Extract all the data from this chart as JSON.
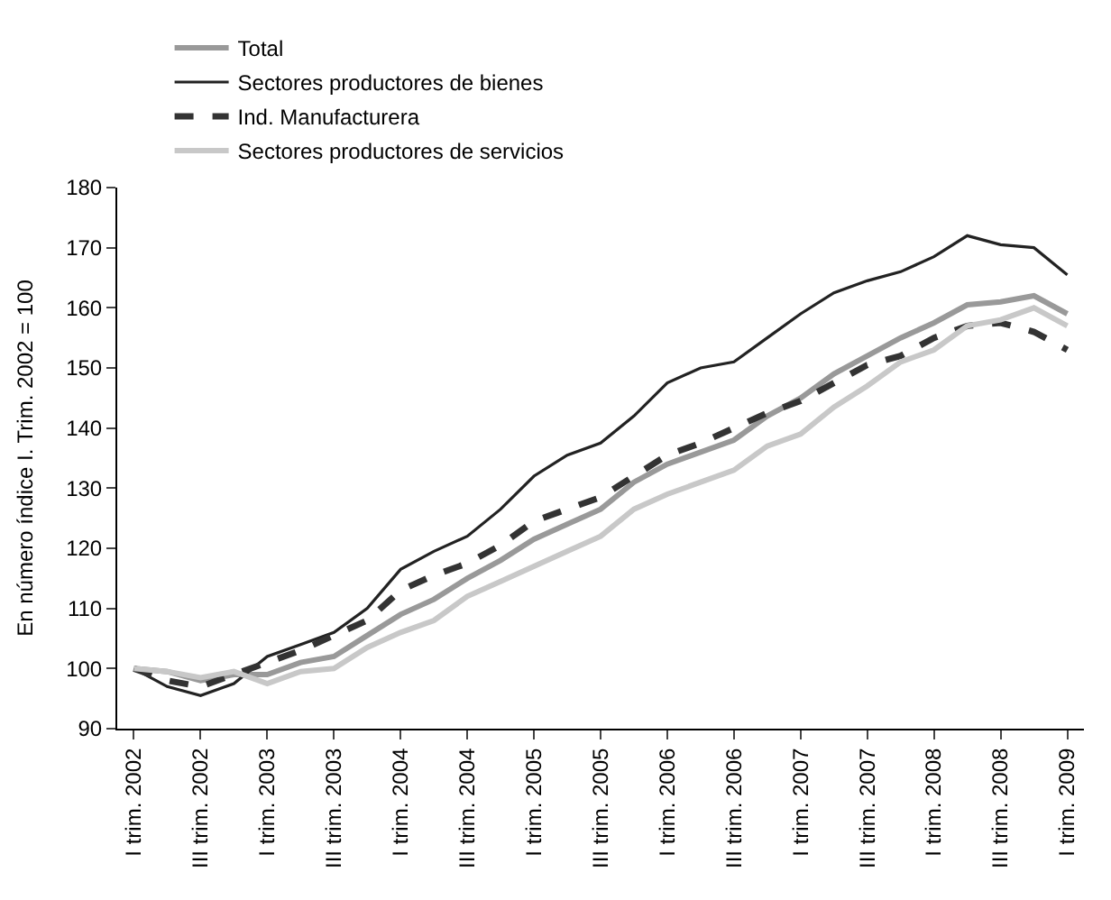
{
  "chart_data": {
    "type": "line",
    "ylabel": "En número índice I. Trim. 2002 = 100",
    "categories": [
      "I trim. 2002",
      null,
      "III trim. 2002",
      null,
      "I trim. 2003",
      null,
      "III trim. 2003",
      null,
      "I trim. 2004",
      null,
      "III trim. 2004",
      null,
      "I trim. 2005",
      null,
      "III trim. 2005",
      null,
      "I trim. 2006",
      null,
      "III trim. 2006",
      null,
      "I trim. 2007",
      null,
      "III trim. 2007",
      null,
      "I trim. 2008",
      null,
      "III trim. 2008",
      null,
      "I trim. 2009"
    ],
    "ylim": [
      90,
      180
    ],
    "yticks": [
      90,
      100,
      110,
      120,
      130,
      140,
      150,
      160,
      170,
      180
    ],
    "grid": false,
    "legend": "top",
    "marker": "none",
    "series": [
      {
        "name": "Total",
        "color": "#999999",
        "line_style": "solid",
        "values": [
          100,
          99.5,
          98,
          99,
          99,
          101,
          102,
          105.5,
          109,
          111.5,
          115,
          118,
          121.5,
          124,
          126.5,
          131,
          134,
          136,
          138,
          142,
          145,
          149,
          152,
          155,
          157.5,
          160.5,
          161,
          162,
          159
        ]
      },
      {
        "name": "Sectores productores de bienes",
        "color": "#222222",
        "line_style": "solid",
        "values": [
          100,
          97,
          95.5,
          97.5,
          102,
          104,
          106,
          110,
          116.5,
          119.5,
          122,
          126.5,
          132,
          135.5,
          137.5,
          142,
          147.5,
          150,
          151,
          155,
          159,
          162.5,
          164.5,
          166,
          168.5,
          172,
          170.5,
          170,
          165.5
        ]
      },
      {
        "name": "Ind. Manufacturera",
        "color": "#333333",
        "line_style": "dashed",
        "values": [
          100,
          98,
          97,
          99,
          101,
          103,
          105.5,
          108,
          113,
          115.5,
          117.5,
          120.5,
          124.5,
          126.5,
          128.5,
          132,
          135.5,
          137.5,
          140,
          142.5,
          144.5,
          147.5,
          150.5,
          152,
          155,
          157,
          157.5,
          156,
          153
        ]
      },
      {
        "name": "Sectores productores de servicios",
        "color": "#c8c8c8",
        "line_style": "solid",
        "values": [
          100,
          99.5,
          98.5,
          99.5,
          97.5,
          99.5,
          100,
          103.5,
          106,
          108,
          112,
          114.5,
          117,
          119.5,
          122,
          126.5,
          129,
          131,
          133,
          137,
          139,
          143.5,
          147,
          151,
          153,
          157,
          158,
          160,
          157
        ]
      }
    ]
  }
}
